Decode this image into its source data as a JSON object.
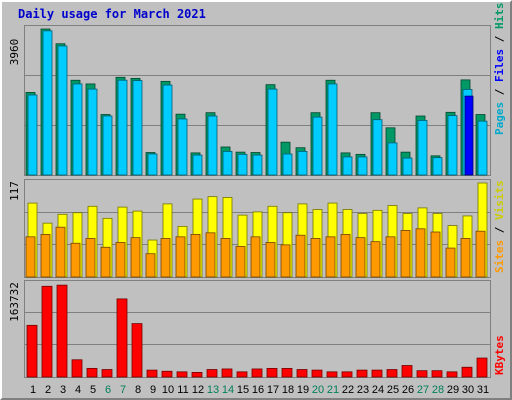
{
  "chart_data": [
    {
      "type": "bar",
      "title": "Daily usage for March 2021",
      "panel": "top",
      "ymax_label": "3960",
      "categories": [
        "1",
        "2",
        "3",
        "4",
        "5",
        "6",
        "7",
        "8",
        "9",
        "10",
        "11",
        "12",
        "13",
        "14",
        "15",
        "16",
        "17",
        "18",
        "19",
        "20",
        "21",
        "22",
        "23",
        "24",
        "25",
        "26",
        "27",
        "28",
        "29",
        "30",
        "31"
      ],
      "weekend_days": [
        "6",
        "7",
        "13",
        "14",
        "20",
        "21",
        "27",
        "28"
      ],
      "legend": [
        "Pages",
        "/",
        "Files",
        "/",
        "Hits"
      ],
      "series": [
        {
          "name": "Hits",
          "color": "#009966",
          "values": [
            2240,
            3960,
            3560,
            2570,
            2470,
            1640,
            2650,
            2620,
            610,
            2540,
            1650,
            600,
            1690,
            760,
            620,
            610,
            2450,
            890,
            740,
            1690,
            2570,
            600,
            560,
            1690,
            1280,
            620,
            1600,
            520,
            1700,
            2580,
            1640
          ]
        },
        {
          "name": "Files",
          "color": "#00ccff",
          "values": [
            2170,
            3910,
            3500,
            2470,
            2330,
            1600,
            2570,
            2560,
            570,
            2440,
            1520,
            540,
            1600,
            640,
            560,
            540,
            2330,
            570,
            640,
            1570,
            2470,
            490,
            490,
            1500,
            870,
            460,
            1480,
            470,
            1610,
            2320,
            1460
          ]
        },
        {
          "name": "Pages",
          "color": "#0000ff",
          "values": [
            0,
            0,
            0,
            0,
            0,
            0,
            0,
            0,
            0,
            0,
            0,
            0,
            0,
            0,
            0,
            0,
            0,
            0,
            0,
            0,
            0,
            0,
            0,
            0,
            0,
            0,
            0,
            0,
            0,
            2140,
            0
          ]
        }
      ]
    },
    {
      "type": "bar",
      "panel": "middle",
      "ymax_label": "117",
      "legend": [
        "Sites",
        "/",
        "Visits"
      ],
      "series": [
        {
          "name": "Visits",
          "color": "#ffff00",
          "values": [
            92,
            67,
            78,
            80,
            88,
            73,
            87,
            82,
            46,
            91,
            63,
            97,
            100,
            99,
            77,
            81,
            88,
            80,
            91,
            84,
            92,
            84,
            79,
            83,
            89,
            79,
            86,
            79,
            64,
            76,
            117
          ]
        },
        {
          "name": "Sites",
          "color": "#ff9900",
          "values": [
            50,
            53,
            62,
            42,
            48,
            37,
            43,
            49,
            29,
            48,
            50,
            53,
            55,
            48,
            38,
            50,
            43,
            40,
            52,
            48,
            50,
            53,
            49,
            44,
            50,
            58,
            60,
            56,
            36,
            48,
            57
          ]
        }
      ]
    },
    {
      "type": "bar",
      "panel": "bottom",
      "ymax_label": "163732",
      "legend": [
        "KBytes"
      ],
      "series": [
        {
          "name": "KBytes",
          "color": "#ff0000",
          "values": [
            90000,
            158000,
            160000,
            30000,
            15000,
            13000,
            136000,
            93000,
            12000,
            10000,
            9000,
            8000,
            13000,
            14000,
            9000,
            14000,
            15000,
            15000,
            13000,
            12000,
            9000,
            9000,
            12000,
            12000,
            13000,
            20000,
            11000,
            11000,
            9000,
            17000,
            33000
          ]
        }
      ]
    }
  ]
}
